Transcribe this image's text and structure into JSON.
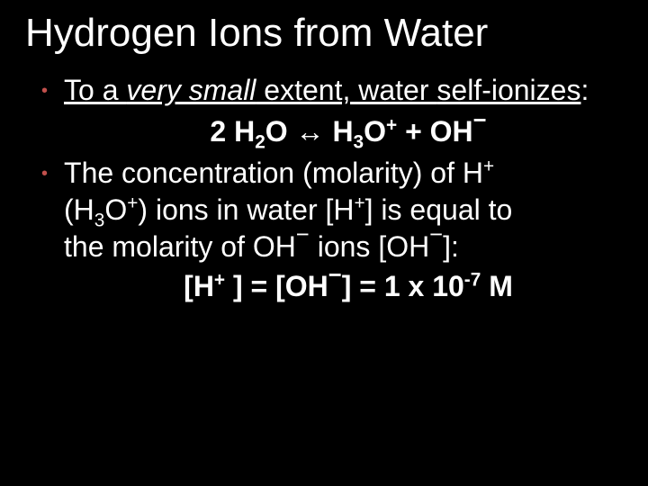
{
  "slide": {
    "background_color": "#000000",
    "text_color": "#ffffff",
    "bullet_color": "#c2504c",
    "title_fontsize": 44,
    "body_fontsize": 32,
    "font_family": "Arial",
    "title": "Hydrogen Ions from Water",
    "bullets": [
      {
        "prefix_underline": "To a ",
        "italic_underline": "very small",
        "mid_underline": " extent, water ",
        "term_underline": "self-ionizes",
        "colon": ":"
      },
      {
        "line1_a": "The concentration (molarity) of H",
        "line1_sup": "+",
        "line2_a": "(H",
        "line2_sub": "3",
        "line2_b": "O",
        "line2_sup": "+",
        "line2_c": ") ions in water [H",
        "line2_sup2": "+",
        "line2_d": "] is equal to",
        "line3_a": "the molarity of OH",
        "line3_b": " ions [OH",
        "line3_c": "]:"
      }
    ],
    "equation1": {
      "a": "2 H",
      "s1": "2",
      "b": "O ↔ H",
      "s2": "3",
      "c": "O",
      "p1": "+",
      "d": " + OH"
    },
    "equation2": {
      "a": "[H",
      "p1": "+",
      "b": " ] = [OH",
      "c": "] = 1 x 10",
      "exp": "-7",
      "d": " M"
    }
  }
}
